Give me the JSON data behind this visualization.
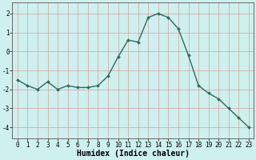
{
  "x": [
    0,
    1,
    2,
    3,
    4,
    5,
    6,
    7,
    8,
    9,
    10,
    11,
    12,
    13,
    14,
    15,
    16,
    17,
    18,
    19,
    20,
    21,
    22,
    23
  ],
  "y": [
    -1.5,
    -1.8,
    -2.0,
    -1.6,
    -2.0,
    -1.8,
    -1.9,
    -1.9,
    -1.8,
    -1.3,
    -0.3,
    0.6,
    0.5,
    1.8,
    2.0,
    1.8,
    1.2,
    -0.2,
    -1.8,
    -2.2,
    -2.5,
    -3.0,
    -3.5,
    -4.0
  ],
  "line_color": "#2e6b5e",
  "marker": "D",
  "marker_size": 2.0,
  "linewidth": 1.0,
  "bg_color": "#cef0ee",
  "grid_color": "#d8a0a0",
  "xlabel": "Humidex (Indice chaleur)",
  "xlabel_fontsize": 7,
  "xlim": [
    -0.5,
    23.5
  ],
  "ylim": [
    -4.6,
    2.6
  ],
  "yticks": [
    -4,
    -3,
    -2,
    -1,
    0,
    1,
    2
  ],
  "xticks": [
    0,
    1,
    2,
    3,
    4,
    5,
    6,
    7,
    8,
    9,
    10,
    11,
    12,
    13,
    14,
    15,
    16,
    17,
    18,
    19,
    20,
    21,
    22,
    23
  ],
  "tick_fontsize": 5.5,
  "xlabel_fontweight": "bold",
  "spine_color": "#555555"
}
